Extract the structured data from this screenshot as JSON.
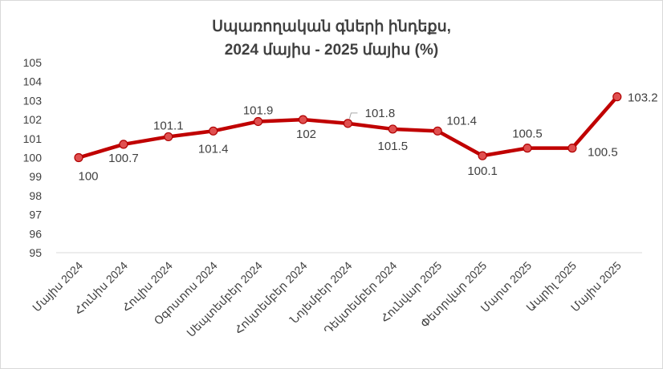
{
  "chart_data": {
    "type": "line",
    "title_line1": "Սպառողական գների ինդեքս,",
    "title_line2": "2024 մայիս - 2025 մայիս (%)",
    "categories": [
      "Մայիս 2024",
      "Հունիս 2024",
      "Հուլիս 2024",
      "Օգոստոս 2024",
      "Սեպտեմբեր 2024",
      "Հոկտեմբեր 2024",
      "Նոյեմբեր 2024",
      "Դեկտեմբեր 2024",
      "Հունվար 2025",
      "Փետրվար 2025",
      "Մարտ 2025",
      "Ապրիլ 2025",
      "Մայիս 2025"
    ],
    "values": [
      100,
      100.7,
      101.1,
      101.4,
      101.9,
      102,
      101.8,
      101.5,
      101.4,
      100.1,
      100.5,
      100.5,
      103.2
    ],
    "labels": [
      "100",
      "100.7",
      "101.1",
      "101.4",
      "101.9",
      "102",
      "101.8",
      "101.5",
      "101.4",
      "100.1",
      "100.5",
      "100.5",
      "103.2"
    ],
    "ylim": [
      95,
      105
    ],
    "yticks": [
      "95",
      "96",
      "97",
      "98",
      "99",
      "100",
      "101",
      "102",
      "103",
      "104",
      "105"
    ],
    "grid": false,
    "legend": "none",
    "line_color": "#c00000",
    "marker_fill": "#e05050"
  }
}
